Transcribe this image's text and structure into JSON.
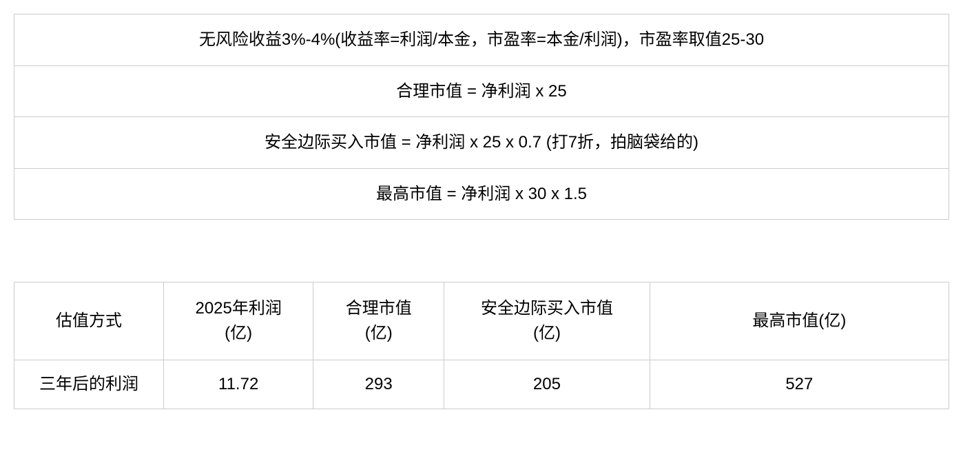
{
  "formula_table": {
    "type": "table",
    "border_color": "#cccccc",
    "background_color": "#ffffff",
    "text_color": "#000000",
    "font_size": 24,
    "rows": [
      "无风险收益3%-4%(收益率=利润/本金，市盈率=本金/利润)，市盈率取值25-30",
      "合理市值 = 净利润 x 25",
      "安全边际买入市值 = 净利润 x 25 x 0.7 (打7折，拍脑袋给的)",
      "最高市值 = 净利润 x 30 x 1.5"
    ]
  },
  "data_table": {
    "type": "table",
    "border_color": "#cccccc",
    "background_color": "#ffffff",
    "text_color": "#000000",
    "font_size": 24,
    "columns": [
      "估值方式",
      "2025年利润(亿)",
      "合理市值(亿)",
      "安全边际买入市值(亿)",
      "最高市值(亿)"
    ],
    "rows": [
      {
        "label": "三年后的利润",
        "profit_2025": "11.72",
        "fair_value": "293",
        "margin_buy": "205",
        "max_value": "527"
      }
    ]
  }
}
